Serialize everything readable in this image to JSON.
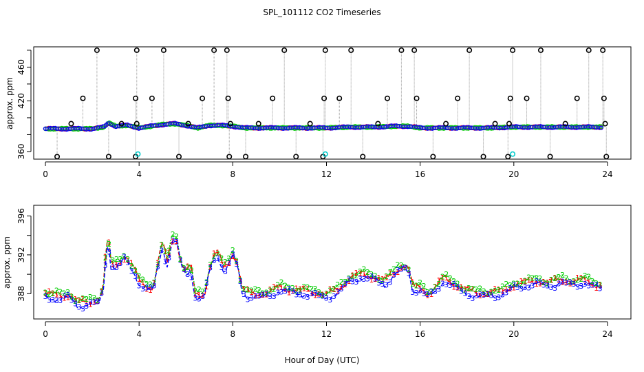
{
  "title": "SPL_101112  CO2 Timeseries",
  "xlabel_bottom": "Hour of Day (UTC)",
  "colors": {
    "ch1": "#ff0000",
    "ch2": "#00cc00",
    "ch3": "#0000ff",
    "flag": "#00cccc",
    "outlier": "#000000",
    "connector": "#999999"
  },
  "chart_data": [
    {
      "type": "scatter",
      "panel": "top",
      "ylabel": "approx. ppm",
      "xlim": [
        -0.5,
        25
      ],
      "ylim": [
        351,
        484
      ],
      "xticks": [
        0,
        4,
        8,
        12,
        16,
        20,
        24
      ],
      "yticks": [
        360,
        380,
        400,
        420,
        440,
        460,
        480
      ],
      "ytick_labels": [
        "360",
        "",
        "",
        "420",
        "",
        "460",
        ""
      ],
      "baseline_profile": {
        "x": [
          0,
          1,
          2,
          2.5,
          2.7,
          3,
          3.5,
          4,
          4.5,
          5,
          5.5,
          6,
          6.5,
          7,
          7.5,
          8,
          8.5,
          10,
          12,
          13,
          14,
          15,
          15.5,
          16,
          17,
          18,
          19,
          20,
          21,
          22,
          23,
          23.8
        ],
        "y": [
          387,
          387,
          387,
          389,
          394,
          390,
          391,
          388,
          390,
          392,
          393,
          391,
          388,
          391,
          391,
          390,
          388,
          388,
          388,
          389,
          389,
          390,
          390,
          388,
          388,
          388,
          388,
          389,
          389,
          389,
          389,
          389
        ]
      },
      "outliers_high": [
        2.2,
        3.9,
        5.05,
        7.2,
        7.75,
        10.2,
        11.95,
        13.05,
        15.2,
        15.75,
        18.1,
        19.95,
        21.15,
        23.2,
        23.8
      ],
      "outliers_mid": [
        1.6,
        3.85,
        4.55,
        6.7,
        7.8,
        9.7,
        11.9,
        12.55,
        14.6,
        15.85,
        17.6,
        19.85,
        20.55,
        22.7,
        23.85
      ],
      "outliers_low": [
        0.5,
        2.7,
        3.85,
        5.7,
        7.85,
        8.55,
        10.7,
        11.85,
        13.55,
        16.55,
        18.7,
        19.75,
        21.55,
        23.95
      ],
      "outliers_small": [
        1.1,
        3.25,
        3.9,
        6.1,
        7.9,
        9.1,
        11.3,
        14.2,
        17.1,
        19.2,
        19.8,
        22.2,
        23.9
      ],
      "flags": [
        3.95,
        11.95,
        19.95
      ],
      "flag_y": 357,
      "outlier_y": {
        "high": 480,
        "mid": 423,
        "low": 354,
        "small": 393
      }
    },
    {
      "type": "line",
      "panel": "bottom",
      "ylabel": "approx. ppm",
      "xlim": [
        -0.5,
        25
      ],
      "ylim": [
        385.4,
        397.1
      ],
      "xticks": [
        0,
        4,
        8,
        12,
        16,
        20,
        24
      ],
      "yticks": [
        388,
        390,
        392,
        394,
        396
      ],
      "ytick_labels": [
        "388",
        "",
        "392",
        "",
        "396"
      ],
      "series_names": [
        "1",
        "2",
        "3"
      ],
      "profile": {
        "x": [
          0,
          0.6,
          1.0,
          1.4,
          1.8,
          2.3,
          2.5,
          2.6,
          2.7,
          2.8,
          3.0,
          3.2,
          3.4,
          3.6,
          3.8,
          4.0,
          4.3,
          4.6,
          4.8,
          5.0,
          5.2,
          5.4,
          5.6,
          5.8,
          6.0,
          6.2,
          6.4,
          6.6,
          6.8,
          7.0,
          7.2,
          7.4,
          7.6,
          7.8,
          8.0,
          8.2,
          8.4,
          8.6,
          9.0,
          9.5,
          10.0,
          10.5,
          11.0,
          11.5,
          12.0,
          12.5,
          13.0,
          13.5,
          14.0,
          14.5,
          15.0,
          15.3,
          15.5,
          15.7,
          16.0,
          16.3,
          16.5,
          17.0,
          17.5,
          18.0,
          18.5,
          19.0,
          19.5,
          20.0,
          20.5,
          21.0,
          21.5,
          22.0,
          22.5,
          23.0,
          23.5,
          23.8
        ],
        "y": [
          387.9,
          387.6,
          387.8,
          387.0,
          387.0,
          387.3,
          389.0,
          393.0,
          393.3,
          391.0,
          390.8,
          391.2,
          391.8,
          391.0,
          390.4,
          389.2,
          388.6,
          388.5,
          391.0,
          393.2,
          391.0,
          393.5,
          393.4,
          391.0,
          390.2,
          390.8,
          387.8,
          387.7,
          387.9,
          390.5,
          391.8,
          392.0,
          390.5,
          391.0,
          392.0,
          391.0,
          388.4,
          388.0,
          387.8,
          388.0,
          388.5,
          388.3,
          388.2,
          388.0,
          387.8,
          388.3,
          389.5,
          389.9,
          389.6,
          389.2,
          390.3,
          390.8,
          390.5,
          388.5,
          388.5,
          387.9,
          388.1,
          389.5,
          388.8,
          388.2,
          387.9,
          388.0,
          388.1,
          388.8,
          389.0,
          389.2,
          389.0,
          389.3,
          389.1,
          389.3,
          388.8,
          388.7
        ]
      }
    }
  ]
}
